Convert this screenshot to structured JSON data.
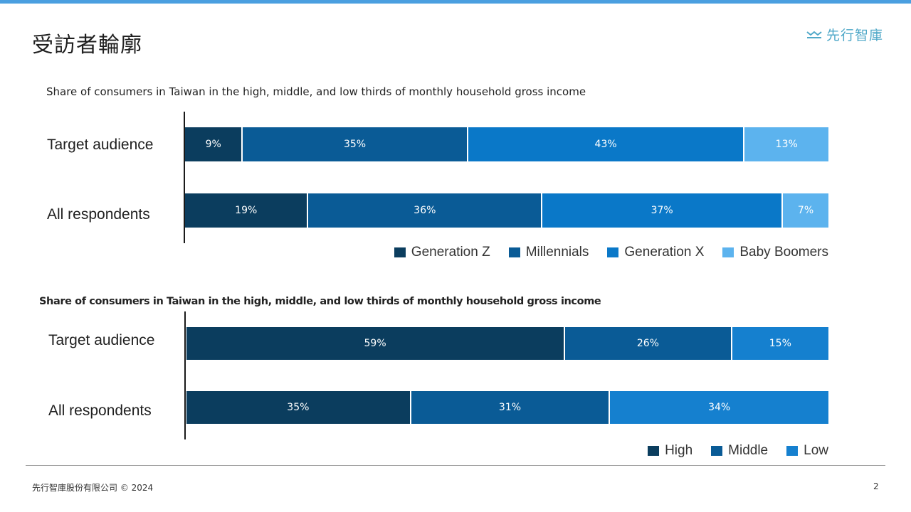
{
  "header": {
    "title": "受訪者輪廓",
    "logo_text": "先行智庫",
    "accent_color": "#4a9fe0"
  },
  "footer": {
    "copyright": "先行智庫股份有限公司 © 2024",
    "page_number": "2"
  },
  "chart_data": [
    {
      "type": "bar",
      "orientation": "horizontal",
      "stacked": true,
      "title": "Share of consumers in Taiwan in the high, middle, and low thirds of monthly household gross income",
      "categories": [
        "Target audience",
        "All respondents"
      ],
      "series": [
        {
          "name": "Generation Z",
          "values": [
            9,
            19
          ],
          "labels": [
            "9%",
            "19%"
          ],
          "color": "#0b3d5e"
        },
        {
          "name": "Millennials",
          "values": [
            35,
            36
          ],
          "labels": [
            "35%",
            "36%"
          ],
          "color": "#0a5b96"
        },
        {
          "name": "Generation X",
          "values": [
            43,
            37
          ],
          "labels": [
            "43%",
            "37%"
          ],
          "color": "#0a78c8"
        },
        {
          "name": "Baby Boomers",
          "values": [
            13,
            7
          ],
          "labels": [
            "13%",
            "7%"
          ],
          "color": "#5cb3ee"
        }
      ],
      "legend": "bottom-right",
      "grid": false
    },
    {
      "type": "bar",
      "orientation": "horizontal",
      "stacked": true,
      "title": "Share of consumers in Taiwan in the high, middle, and low thirds of monthly household gross income",
      "categories": [
        "Target audience",
        "All respondents"
      ],
      "series": [
        {
          "name": "High",
          "values": [
            59,
            35
          ],
          "labels": [
            "59%",
            "35%"
          ],
          "color": "#0b3d5e"
        },
        {
          "name": "Middle",
          "values": [
            26,
            31
          ],
          "labels": [
            "26%",
            "31%"
          ],
          "color": "#0a5b96"
        },
        {
          "name": "Low",
          "values": [
            15,
            34
          ],
          "labels": [
            "15%",
            "34%"
          ],
          "color": "#1580cf"
        }
      ],
      "legend": "bottom-right",
      "grid": false
    }
  ]
}
